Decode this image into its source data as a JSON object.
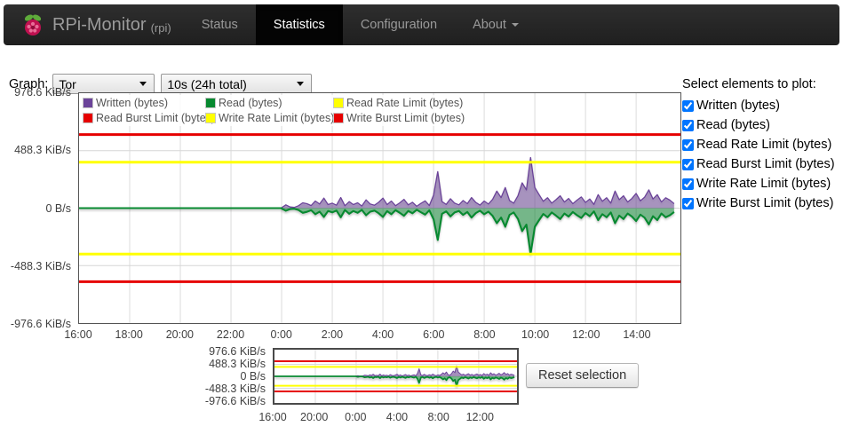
{
  "navbar": {
    "brand": "RPi-Monitor",
    "brand_suffix": "(rpi)",
    "items": [
      {
        "label": "Status",
        "active": false,
        "caret": false
      },
      {
        "label": "Statistics",
        "active": true,
        "caret": false
      },
      {
        "label": "Configuration",
        "active": false,
        "caret": false
      },
      {
        "label": "About",
        "active": false,
        "caret": true
      }
    ]
  },
  "controls": {
    "graph_label": "Graph:",
    "graph_select": {
      "value": "Tor"
    },
    "period_select": {
      "value": "10s (24h total)"
    }
  },
  "plot_panel": {
    "title": "Select elements to plot:",
    "checkboxes": [
      {
        "label": "Written (bytes)",
        "checked": true
      },
      {
        "label": "Read (bytes)",
        "checked": true
      },
      {
        "label": "Read Rate Limit (bytes)",
        "checked": true
      },
      {
        "label": "Read Burst Limit (bytes)",
        "checked": true
      },
      {
        "label": "Write Rate Limit (bytes)",
        "checked": true
      },
      {
        "label": "Write Burst Limit (bytes)",
        "checked": true
      }
    ]
  },
  "reset_button_label": "Reset selection",
  "chart_data": {
    "type": "line",
    "units": "KiB/s",
    "y_ticks": [
      {
        "label": "976.6 KiB/s",
        "value": 976.6
      },
      {
        "label": "488.3 KiB/s",
        "value": 488.3
      },
      {
        "label": "0 B/s",
        "value": 0
      },
      {
        "label": "-488.3 KiB/s",
        "value": -488.3
      },
      {
        "label": "-976.6 KiB/s",
        "value": -976.6
      }
    ],
    "ylim_main": [
      -976.6,
      976.6
    ],
    "ylim_mini": [
      -1100,
      1100
    ],
    "x_domain_hours": 23.75,
    "x_ticks_main": [
      "16:00",
      "18:00",
      "20:00",
      "22:00",
      "0:00",
      "2:00",
      "4:00",
      "6:00",
      "8:00",
      "10:00",
      "12:00",
      "14:00"
    ],
    "x_ticks_mini": [
      "16:00",
      "20:00",
      "0:00",
      "4:00",
      "8:00",
      "12:00"
    ],
    "grid": true,
    "legend_position": "top-left",
    "colors": {
      "written": "#6b4399",
      "read": "#078930",
      "rate_limit": "#ffff00",
      "burst_limit": "#e60000"
    },
    "limits": [
      {
        "name": "Read Rate Limit (bytes)",
        "value": 390.6,
        "color": "#ffff00"
      },
      {
        "name": "Read Burst Limit (bytes)",
        "value": 625,
        "color": "#e60000"
      },
      {
        "name": "Write Rate Limit (bytes)",
        "value": -390.6,
        "color": "#ffff00"
      },
      {
        "name": "Write Burst Limit (bytes)",
        "value": -625,
        "color": "#e60000"
      }
    ],
    "legend": [
      {
        "label": "Written (bytes)",
        "color": "#6b4399"
      },
      {
        "label": "Read (bytes)",
        "color": "#078930"
      },
      {
        "label": "Read Rate Limit (bytes)",
        "color": "#ffff00"
      },
      {
        "label": "Read Burst Limit (bytes)",
        "color": "#e60000"
      },
      {
        "label": "Write Rate Limit (bytes)",
        "color": "#ffff00"
      },
      {
        "label": "Write Burst Limit (bytes)",
        "color": "#e60000"
      }
    ],
    "series": [
      {
        "name": "Written (bytes)",
        "color": "#6b4399",
        "sign": 1,
        "start_hour_offset": 8.0,
        "step_hours": 0.16667,
        "values": [
          4,
          28,
          10,
          6,
          20,
          45,
          38,
          22,
          60,
          35,
          85,
          30,
          42,
          25,
          90,
          20,
          55,
          30,
          45,
          18,
          70,
          35,
          25,
          50,
          85,
          30,
          60,
          20,
          45,
          75,
          28,
          50,
          16,
          40,
          62,
          22,
          110,
          310,
          55,
          32,
          80,
          42,
          28,
          65,
          38,
          90,
          48,
          26,
          60,
          35,
          75,
          145,
          90,
          175,
          65,
          42,
          105,
          215,
          155,
          430,
          175,
          115,
          58,
          88,
          42,
          72,
          105,
          52,
          82,
          38,
          68,
          95,
          48,
          78,
          32,
          115,
          58,
          88,
          42,
          145,
          72,
          105,
          52,
          82,
          125,
          62,
          92,
          155,
          78,
          115,
          52,
          88,
          68,
          38
        ]
      },
      {
        "name": "Read (bytes)",
        "color": "#078930",
        "sign": -1,
        "start_hour_offset": 8.0,
        "step_hours": 0.16667,
        "values": [
          3,
          22,
          8,
          5,
          16,
          40,
          32,
          18,
          52,
          30,
          75,
          25,
          36,
          20,
          78,
          16,
          48,
          25,
          40,
          15,
          60,
          30,
          21,
          44,
          75,
          26,
          52,
          17,
          40,
          65,
          24,
          44,
          14,
          35,
          55,
          19,
          95,
          270,
          48,
          28,
          70,
          37,
          24,
          57,
          33,
          80,
          42,
          22,
          52,
          30,
          66,
          128,
          80,
          158,
          57,
          37,
          92,
          195,
          140,
          390,
          158,
          102,
          50,
          78,
          37,
          63,
          93,
          46,
          72,
          33,
          60,
          84,
          42,
          69,
          28,
          102,
          51,
          78,
          37,
          128,
          63,
          93,
          46,
          72,
          110,
          55,
          81,
          138,
          69,
          102,
          46,
          78,
          60,
          33
        ]
      }
    ]
  }
}
